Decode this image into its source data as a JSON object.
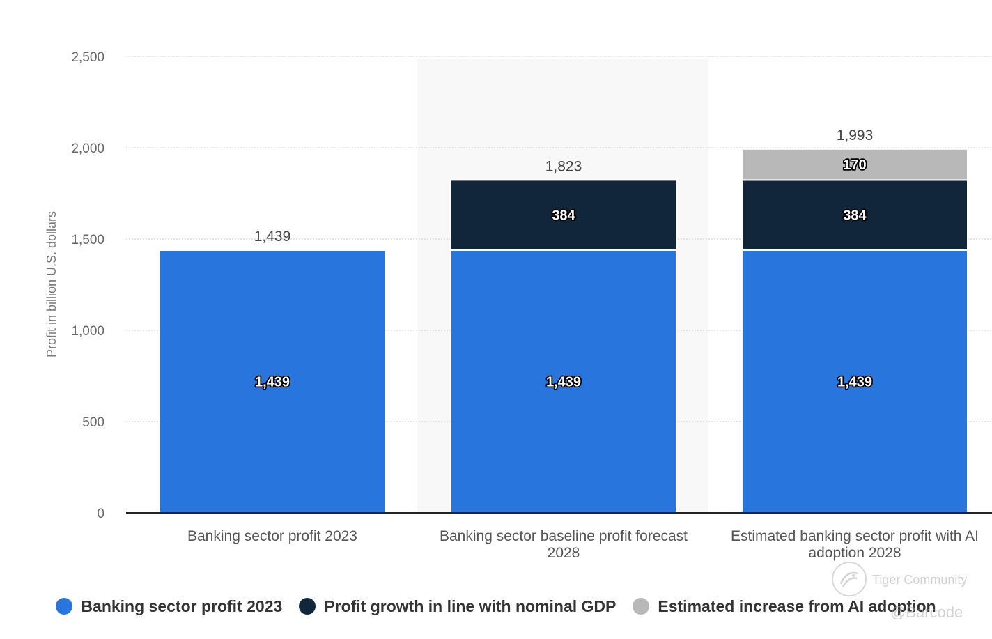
{
  "chart_data": {
    "type": "bar",
    "stacked": true,
    "categories": [
      "Banking sector profit 2023",
      "Banking sector baseline profit forecast 2028",
      "Estimated banking sector profit with AI adoption 2028"
    ],
    "category_lines": [
      [
        "Banking sector profit 2023"
      ],
      [
        "Banking sector baseline profit forecast",
        "2028"
      ],
      [
        "Estimated banking sector profit with AI",
        "adoption 2028"
      ]
    ],
    "series": [
      {
        "name": "Banking sector profit 2023",
        "values": [
          1439,
          1439,
          1439
        ],
        "labels": [
          "1,439",
          "1,439",
          "1,439"
        ],
        "color": "#2876dd"
      },
      {
        "name": "Profit growth in line with nominal GDP",
        "values": [
          null,
          384,
          384
        ],
        "labels": [
          "",
          "384",
          "384"
        ],
        "color": "#12263b"
      },
      {
        "name": "Estimated increase from AI adoption",
        "values": [
          null,
          null,
          170
        ],
        "labels": [
          "",
          "",
          "170"
        ],
        "color": "#b8b8b8"
      }
    ],
    "totals": [
      1439,
      1823,
      1993
    ],
    "total_labels": [
      "1,439",
      "1,823",
      "1,993"
    ],
    "ylabel": "Profit in billion U.S. dollars",
    "xlabel": "",
    "ylim": [
      0,
      2500
    ],
    "yticks": [
      0,
      500,
      1000,
      1500,
      2000,
      2500
    ],
    "ytick_labels": [
      "0",
      "500",
      "1,000",
      "1,500",
      "2,000",
      "2,500"
    ],
    "grid": true,
    "highlighted_category_index": 1,
    "legend_position": "bottom",
    "colors": {
      "blue": "#2876dd",
      "navy": "#12263b",
      "gray": "#b8b8b8",
      "highlight": "#f8f8f8"
    }
  },
  "watermark": {
    "brand": "Tiger Community",
    "handle": "@Barcode"
  }
}
